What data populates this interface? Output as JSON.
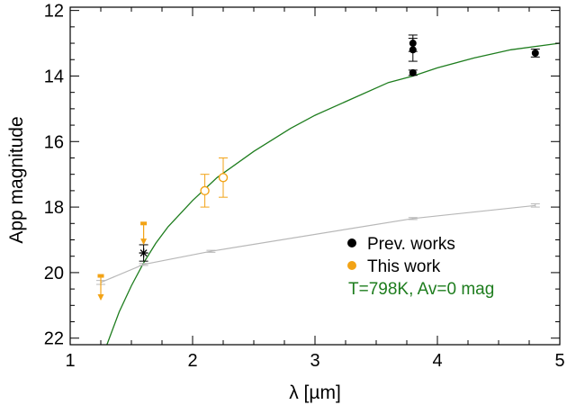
{
  "chart_data": {
    "type": "scatter",
    "xlabel": "λ [µm]",
    "ylabel": "App magnitude",
    "xlim": [
      1,
      5
    ],
    "ylim": [
      22.2,
      11.9
    ],
    "y_inverted": true,
    "grid": false,
    "xticks": [
      1,
      2,
      3,
      4,
      5
    ],
    "yticks": [
      12,
      14,
      16,
      18,
      20,
      22
    ],
    "legend_position": "lower-right",
    "colors": {
      "prev": "#000000",
      "this": "#f2a316",
      "model": "#1e7d1e",
      "gray": "#b8b8b8"
    },
    "legend": [
      {
        "label": "Prev. works",
        "color": "#000000",
        "marker": "filled-circle"
      },
      {
        "label": "This work",
        "color": "#f2a316",
        "marker": "filled-circle"
      },
      {
        "label": "T=798K, Av=0 mag",
        "color": "#1e7d1e",
        "marker": "none"
      }
    ],
    "series": [
      {
        "name": "Prev. works",
        "marker": "filled-circle",
        "points": [
          {
            "x": 3.8,
            "y": 13.0,
            "err": 0.25
          },
          {
            "x": 3.8,
            "y": 13.2,
            "err": 0.35
          },
          {
            "x": 3.8,
            "y": 13.9,
            "err": 0.08
          },
          {
            "x": 4.8,
            "y": 13.3,
            "err": 0.12
          }
        ]
      },
      {
        "name": "Prev. works",
        "marker": "asterisk",
        "points": [
          {
            "x": 1.6,
            "y": 19.4,
            "err": 0.25
          }
        ]
      },
      {
        "name": "This work",
        "marker": "open-circle",
        "points": [
          {
            "x": 2.1,
            "y": 17.5,
            "err": 0.5
          },
          {
            "x": 2.25,
            "y": 17.1,
            "err": 0.6
          }
        ]
      },
      {
        "name": "This work",
        "marker": "upper-limit",
        "points": [
          {
            "x": 1.25,
            "y": 20.1,
            "arrow_to": 20.8
          },
          {
            "x": 1.6,
            "y": 18.5,
            "arrow_to": 19.1
          }
        ]
      },
      {
        "name": "T=798K, Av=0 mag",
        "type": "line",
        "x": [
          1.3,
          1.4,
          1.5,
          1.6,
          1.7,
          1.8,
          2.0,
          2.2,
          2.5,
          2.8,
          3.0,
          3.3,
          3.6,
          3.8,
          4.0,
          4.3,
          4.6,
          5.0
        ],
        "y": [
          22.2,
          21.2,
          20.4,
          19.7,
          19.1,
          18.6,
          17.8,
          17.1,
          16.3,
          15.6,
          15.2,
          14.7,
          14.2,
          14.0,
          13.75,
          13.45,
          13.2,
          13.0
        ]
      },
      {
        "type": "line",
        "x": [
          1.25,
          1.6,
          2.15,
          3.8,
          4.8
        ],
        "y": [
          20.3,
          19.75,
          19.35,
          18.35,
          17.95
        ],
        "points_err": [
          0.06,
          0.03,
          0.03,
          0.03,
          0.05
        ]
      }
    ]
  }
}
